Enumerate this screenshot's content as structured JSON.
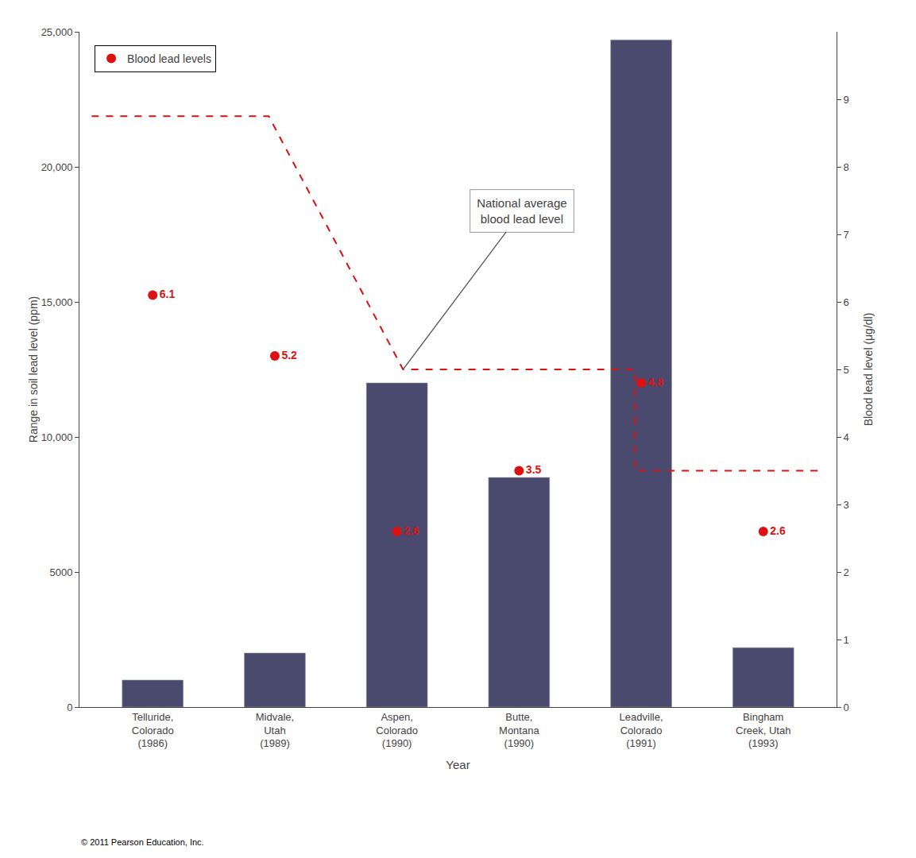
{
  "chart_data": {
    "type": "bar",
    "categories": [
      "Telluride,\nColorado\n(1986)",
      "Midvale,\nUtah\n(1989)",
      "Aspen,\nColorado\n(1990)",
      "Butte,\nMontana\n(1990)",
      "Leadville,\nColorado\n(1991)",
      "Bingham\nCreek, Utah\n(1993)"
    ],
    "xlabel": "Year",
    "ylabel": "Range in soil lead level (ppm)",
    "y2label": "Blood lead level (μg/dl)",
    "xlim": [
      -0.6,
      5.6
    ],
    "ylim": [
      0,
      25000
    ],
    "yticks": [
      0,
      5000,
      {
        "value": 10000,
        "label": "10,000"
      },
      {
        "value": 15000,
        "label": "15,000"
      },
      {
        "value": 20000,
        "label": "20,000"
      },
      {
        "value": 25000,
        "label": "25,000"
      }
    ],
    "y2lim": [
      0,
      10
    ],
    "y2ticks": [
      0,
      1,
      2,
      3,
      4,
      5,
      6,
      7,
      8,
      9
    ],
    "grid": false,
    "legend": "upper left",
    "series": [
      {
        "type": "bar",
        "color": "#4a4a6e",
        "values": [
          1000,
          2000,
          12000,
          8500,
          24700,
          2200
        ]
      },
      {
        "type": "line",
        "axis": "y2",
        "color": "#dd1111",
        "line_style": "dashed",
        "x": [
          -0.5,
          0.95,
          0.95,
          2.05,
          2.05,
          3.95,
          3.95,
          5.5
        ],
        "values": [
          8.75,
          8.75,
          8.75,
          5.0,
          5.0,
          5.0,
          3.5,
          3.5
        ]
      },
      {
        "name": "Blood lead levels",
        "type": "scatter",
        "axis": "y2",
        "color": "#dd1111",
        "marker": "circle",
        "data_labels": true,
        "values": [
          6.1,
          5.2,
          2.6,
          3.5,
          4.8,
          2.6
        ]
      }
    ],
    "annotations": [
      "National average\nblood lead level",
      "© 2011 Pearson Education, Inc."
    ]
  }
}
